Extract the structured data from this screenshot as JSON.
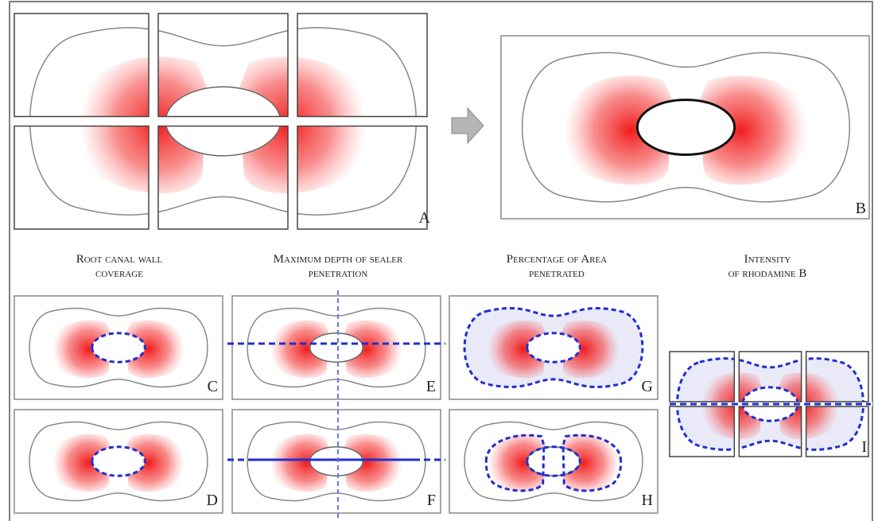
{
  "labels": [
    "A",
    "B",
    "C",
    "D",
    "E",
    "F",
    "G",
    "H",
    "I"
  ],
  "headings": [
    [
      "Root canal wall",
      "coverage"
    ],
    [
      "Maximum depth of sealer",
      "penetration"
    ],
    [
      "Percentage of Area",
      "penetrated"
    ],
    [
      "Intensity",
      "of rhodamine B"
    ]
  ]
}
